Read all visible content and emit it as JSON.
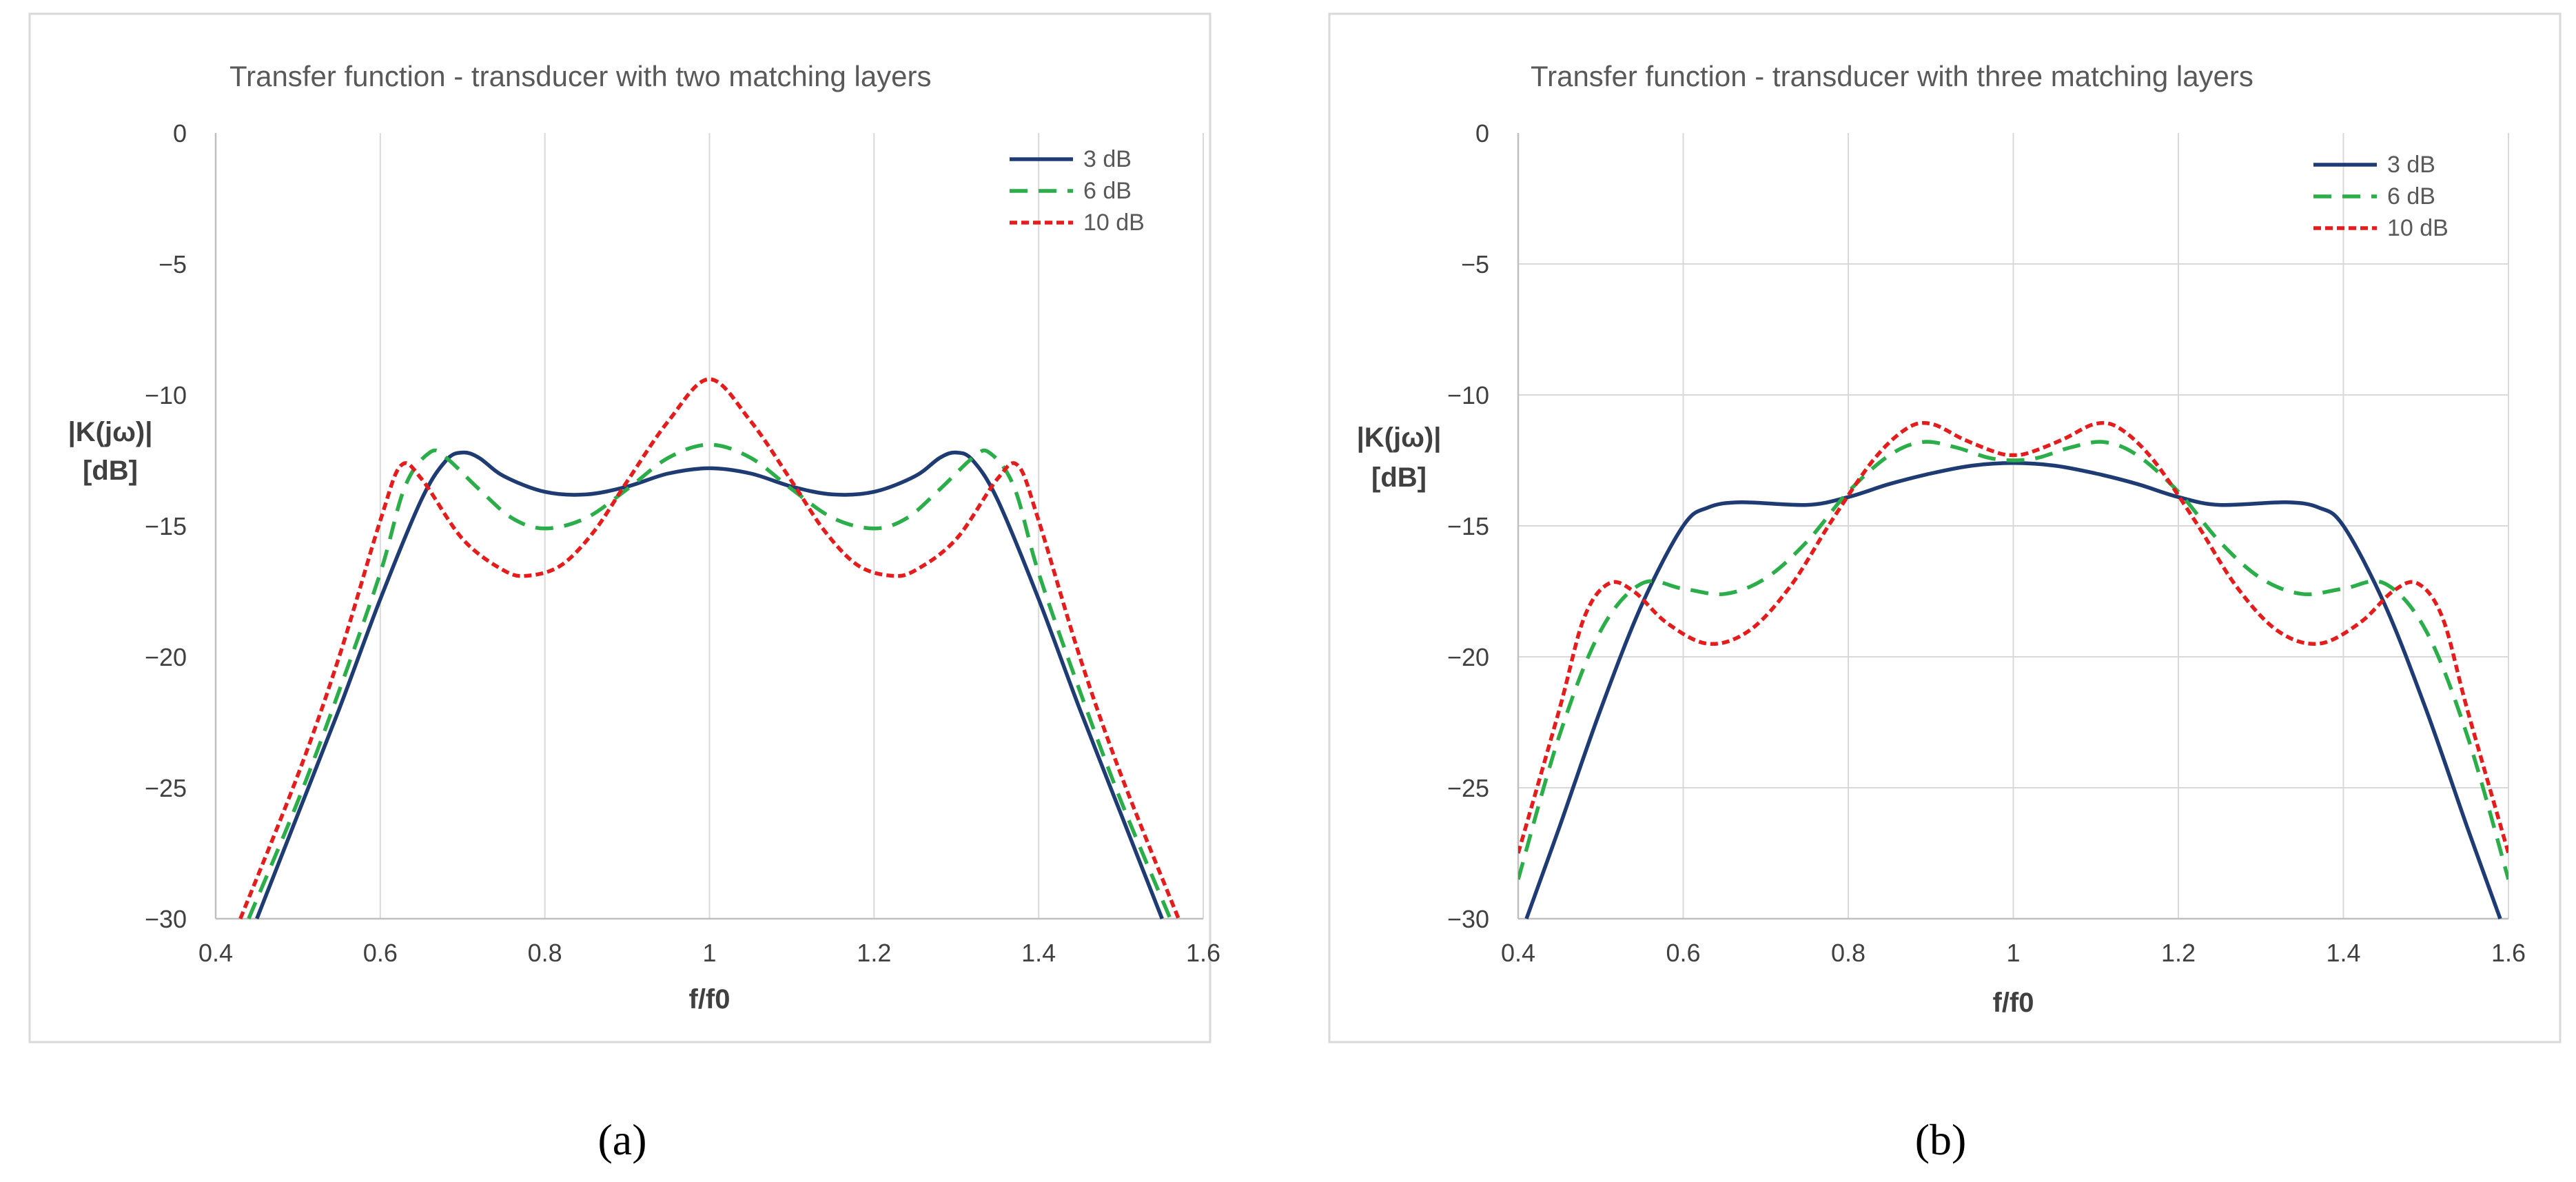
{
  "chart_data": [
    {
      "type": "line",
      "panel_label": "(a)",
      "title": "Transfer function - transducer with two matching layers",
      "xlabel": "f/f0",
      "ylabel_line1": "|K(jω)|",
      "ylabel_line2": "[dB]",
      "xlim": [
        0.4,
        1.6
      ],
      "ylim": [
        -30,
        0
      ],
      "xticks": [
        "0.4",
        "0.6",
        "0.8",
        "1",
        "1.2",
        "1.4",
        "1.6"
      ],
      "yticks": [
        "0",
        "−5",
        "−10",
        "−15",
        "−20",
        "−25",
        "−30"
      ],
      "grid": "vertical",
      "legend_position": "top-right",
      "series": [
        {
          "name": "3 dB",
          "color": "#1f3b73",
          "dash": "solid",
          "points": [
            [
              0.45,
              -30
            ],
            [
              0.5,
              -26
            ],
            [
              0.55,
              -22
            ],
            [
              0.6,
              -17.8
            ],
            [
              0.65,
              -14
            ],
            [
              0.68,
              -12.5
            ],
            [
              0.7,
              -12.2
            ],
            [
              0.72,
              -12.4
            ],
            [
              0.75,
              -13.1
            ],
            [
              0.8,
              -13.7
            ],
            [
              0.85,
              -13.8
            ],
            [
              0.9,
              -13.5
            ],
            [
              0.95,
              -13.0
            ],
            [
              1.0,
              -12.8
            ],
            [
              1.05,
              -13.0
            ],
            [
              1.1,
              -13.5
            ],
            [
              1.15,
              -13.8
            ],
            [
              1.2,
              -13.7
            ],
            [
              1.25,
              -13.1
            ],
            [
              1.28,
              -12.4
            ],
            [
              1.3,
              -12.2
            ],
            [
              1.32,
              -12.5
            ],
            [
              1.35,
              -14
            ],
            [
              1.4,
              -17.8
            ],
            [
              1.45,
              -22
            ],
            [
              1.5,
              -26
            ],
            [
              1.55,
              -30
            ]
          ]
        },
        {
          "name": "6 dB",
          "color": "#2bae4a",
          "dash": "dashed",
          "points": [
            [
              0.44,
              -30
            ],
            [
              0.5,
              -25.5
            ],
            [
              0.55,
              -21.3
            ],
            [
              0.6,
              -16.8
            ],
            [
              0.63,
              -13.5
            ],
            [
              0.66,
              -12.2
            ],
            [
              0.68,
              -12.4
            ],
            [
              0.72,
              -13.6
            ],
            [
              0.76,
              -14.7
            ],
            [
              0.8,
              -15.1
            ],
            [
              0.85,
              -14.7
            ],
            [
              0.9,
              -13.6
            ],
            [
              0.95,
              -12.4
            ],
            [
              1.0,
              -11.9
            ],
            [
              1.05,
              -12.4
            ],
            [
              1.1,
              -13.6
            ],
            [
              1.15,
              -14.7
            ],
            [
              1.2,
              -15.1
            ],
            [
              1.24,
              -14.7
            ],
            [
              1.28,
              -13.6
            ],
            [
              1.32,
              -12.4
            ],
            [
              1.34,
              -12.2
            ],
            [
              1.37,
              -13.5
            ],
            [
              1.4,
              -16.8
            ],
            [
              1.45,
              -21.3
            ],
            [
              1.5,
              -25.5
            ],
            [
              1.56,
              -30
            ]
          ]
        },
        {
          "name": "10 dB",
          "color": "#e51c1c",
          "dash": "dotted",
          "points": [
            [
              0.43,
              -30
            ],
            [
              0.5,
              -24.5
            ],
            [
              0.55,
              -20
            ],
            [
              0.6,
              -14.8
            ],
            [
              0.625,
              -12.7
            ],
            [
              0.65,
              -13.2
            ],
            [
              0.7,
              -15.5
            ],
            [
              0.75,
              -16.7
            ],
            [
              0.78,
              -16.9
            ],
            [
              0.82,
              -16.5
            ],
            [
              0.86,
              -15.2
            ],
            [
              0.9,
              -13.3
            ],
            [
              0.95,
              -11.0
            ],
            [
              1.0,
              -9.4
            ],
            [
              1.05,
              -11.0
            ],
            [
              1.1,
              -13.3
            ],
            [
              1.14,
              -15.2
            ],
            [
              1.18,
              -16.5
            ],
            [
              1.22,
              -16.9
            ],
            [
              1.25,
              -16.7
            ],
            [
              1.3,
              -15.5
            ],
            [
              1.35,
              -13.2
            ],
            [
              1.375,
              -12.7
            ],
            [
              1.4,
              -14.8
            ],
            [
              1.45,
              -20
            ],
            [
              1.5,
              -24.5
            ],
            [
              1.57,
              -30
            ]
          ]
        }
      ]
    },
    {
      "type": "line",
      "panel_label": "(b)",
      "title": "Transfer function - transducer with three matching layers",
      "xlabel": "f/f0",
      "ylabel_line1": "|K(jω)|",
      "ylabel_line2": "[dB]",
      "xlim": [
        0.4,
        1.6
      ],
      "ylim": [
        -30,
        0
      ],
      "xticks": [
        "0.4",
        "0.6",
        "0.8",
        "1",
        "1.2",
        "1.4",
        "1.6"
      ],
      "yticks": [
        "0",
        "−5",
        "−10",
        "−15",
        "−20",
        "−25",
        "−30"
      ],
      "grid": "both",
      "legend_position": "top-right",
      "series": [
        {
          "name": "3 dB",
          "color": "#1f3b73",
          "dash": "solid",
          "points": [
            [
              0.41,
              -30
            ],
            [
              0.45,
              -26.5
            ],
            [
              0.5,
              -22
            ],
            [
              0.55,
              -18
            ],
            [
              0.6,
              -15
            ],
            [
              0.63,
              -14.3
            ],
            [
              0.67,
              -14.1
            ],
            [
              0.75,
              -14.2
            ],
            [
              0.8,
              -13.9
            ],
            [
              0.85,
              -13.4
            ],
            [
              0.9,
              -13.0
            ],
            [
              0.95,
              -12.7
            ],
            [
              1.0,
              -12.6
            ],
            [
              1.05,
              -12.7
            ],
            [
              1.1,
              -13.0
            ],
            [
              1.15,
              -13.4
            ],
            [
              1.2,
              -13.9
            ],
            [
              1.25,
              -14.2
            ],
            [
              1.33,
              -14.1
            ],
            [
              1.37,
              -14.3
            ],
            [
              1.4,
              -15
            ],
            [
              1.45,
              -18
            ],
            [
              1.5,
              -22
            ],
            [
              1.55,
              -26.5
            ],
            [
              1.59,
              -30
            ]
          ]
        },
        {
          "name": "6 dB",
          "color": "#2bae4a",
          "dash": "dashed",
          "points": [
            [
              0.4,
              -28.5
            ],
            [
              0.45,
              -23
            ],
            [
              0.5,
              -19
            ],
            [
              0.55,
              -17.2
            ],
            [
              0.6,
              -17.4
            ],
            [
              0.65,
              -17.6
            ],
            [
              0.7,
              -17.0
            ],
            [
              0.75,
              -15.6
            ],
            [
              0.8,
              -13.7
            ],
            [
              0.85,
              -12.3
            ],
            [
              0.89,
              -11.8
            ],
            [
              0.93,
              -12.0
            ],
            [
              0.97,
              -12.4
            ],
            [
              1.0,
              -12.5
            ],
            [
              1.03,
              -12.4
            ],
            [
              1.07,
              -12.0
            ],
            [
              1.11,
              -11.8
            ],
            [
              1.15,
              -12.3
            ],
            [
              1.2,
              -13.7
            ],
            [
              1.25,
              -15.6
            ],
            [
              1.3,
              -17.0
            ],
            [
              1.35,
              -17.6
            ],
            [
              1.4,
              -17.4
            ],
            [
              1.45,
              -17.2
            ],
            [
              1.5,
              -19
            ],
            [
              1.55,
              -23
            ],
            [
              1.6,
              -28.5
            ]
          ]
        },
        {
          "name": "10 dB",
          "color": "#e51c1c",
          "dash": "dotted",
          "points": [
            [
              0.4,
              -27.5
            ],
            [
              0.45,
              -22
            ],
            [
              0.48,
              -18.5
            ],
            [
              0.51,
              -17.2
            ],
            [
              0.54,
              -17.5
            ],
            [
              0.58,
              -18.7
            ],
            [
              0.63,
              -19.5
            ],
            [
              0.68,
              -19.0
            ],
            [
              0.73,
              -17.3
            ],
            [
              0.78,
              -14.8
            ],
            [
              0.83,
              -12.5
            ],
            [
              0.87,
              -11.3
            ],
            [
              0.9,
              -11.1
            ],
            [
              0.94,
              -11.7
            ],
            [
              0.98,
              -12.2
            ],
            [
              1.0,
              -12.3
            ],
            [
              1.02,
              -12.2
            ],
            [
              1.06,
              -11.7
            ],
            [
              1.1,
              -11.1
            ],
            [
              1.13,
              -11.3
            ],
            [
              1.17,
              -12.5
            ],
            [
              1.22,
              -14.8
            ],
            [
              1.27,
              -17.3
            ],
            [
              1.32,
              -19.0
            ],
            [
              1.37,
              -19.5
            ],
            [
              1.42,
              -18.7
            ],
            [
              1.46,
              -17.5
            ],
            [
              1.49,
              -17.2
            ],
            [
              1.52,
              -18.5
            ],
            [
              1.55,
              -22
            ],
            [
              1.6,
              -27.5
            ]
          ]
        }
      ]
    }
  ]
}
